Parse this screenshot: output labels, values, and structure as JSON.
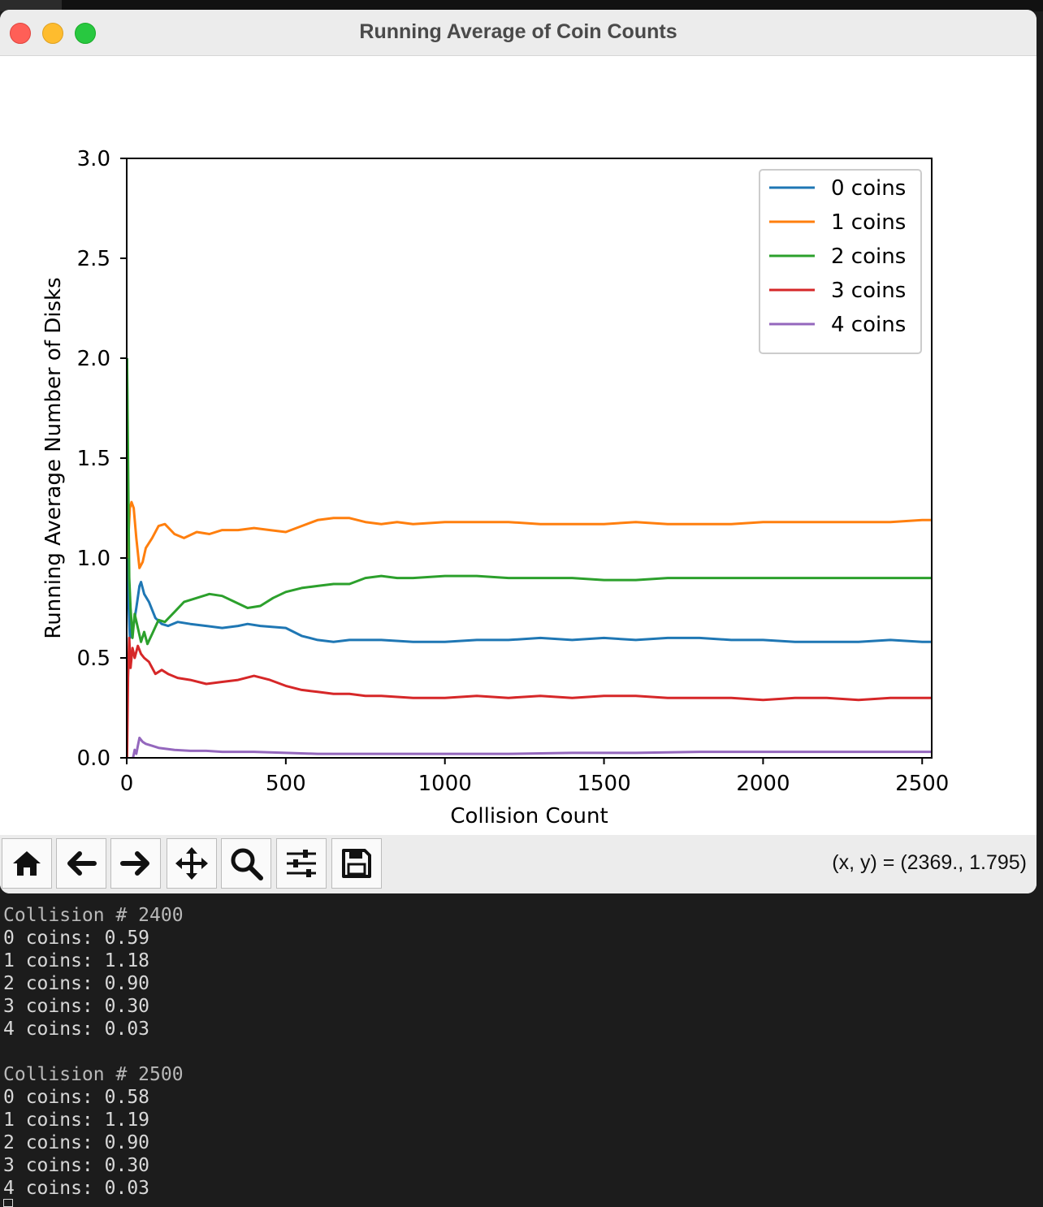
{
  "window": {
    "title": "Running Average of Coin Counts"
  },
  "toolbar": {
    "buttons": [
      {
        "name": "home-button",
        "icon": "home-icon"
      },
      {
        "name": "back-button",
        "icon": "arrow-left-icon"
      },
      {
        "name": "forward-button",
        "icon": "arrow-right-icon"
      },
      {
        "name": "pan-button",
        "icon": "move-icon"
      },
      {
        "name": "zoom-button",
        "icon": "magnifier-icon"
      },
      {
        "name": "configure-subplots-button",
        "icon": "sliders-icon"
      },
      {
        "name": "save-button",
        "icon": "floppy-disk-icon"
      }
    ],
    "coords": "(x, y) = (2369., 1.795)"
  },
  "chart_data": {
    "type": "line",
    "title": "",
    "xlabel": "Collision Count",
    "ylabel": "Running Average Number of Disks",
    "xlim": [
      0,
      2530
    ],
    "ylim": [
      0,
      3.0
    ],
    "xticks": [
      "0",
      "500",
      "1000",
      "1500",
      "2000",
      "2500"
    ],
    "yticks": [
      "0.0",
      "0.5",
      "1.0",
      "1.5",
      "2.0",
      "2.5",
      "3.0"
    ],
    "legend_position": "top-right",
    "grid": false,
    "series": [
      {
        "name": "0 coins",
        "color": "#1f77b4",
        "points": [
          [
            1,
            2.0
          ],
          [
            5,
            0.8
          ],
          [
            10,
            0.6
          ],
          [
            20,
            0.65
          ],
          [
            30,
            0.75
          ],
          [
            40,
            0.86
          ],
          [
            45,
            0.88
          ],
          [
            55,
            0.82
          ],
          [
            70,
            0.78
          ],
          [
            90,
            0.7
          ],
          [
            110,
            0.67
          ],
          [
            130,
            0.66
          ],
          [
            160,
            0.68
          ],
          [
            200,
            0.67
          ],
          [
            250,
            0.66
          ],
          [
            300,
            0.65
          ],
          [
            350,
            0.66
          ],
          [
            380,
            0.67
          ],
          [
            420,
            0.66
          ],
          [
            500,
            0.65
          ],
          [
            550,
            0.61
          ],
          [
            600,
            0.59
          ],
          [
            650,
            0.58
          ],
          [
            700,
            0.59
          ],
          [
            800,
            0.59
          ],
          [
            900,
            0.58
          ],
          [
            1000,
            0.58
          ],
          [
            1100,
            0.59
          ],
          [
            1200,
            0.59
          ],
          [
            1300,
            0.6
          ],
          [
            1400,
            0.59
          ],
          [
            1500,
            0.6
          ],
          [
            1600,
            0.59
          ],
          [
            1700,
            0.6
          ],
          [
            1800,
            0.6
          ],
          [
            1900,
            0.59
          ],
          [
            2000,
            0.59
          ],
          [
            2100,
            0.58
          ],
          [
            2200,
            0.58
          ],
          [
            2300,
            0.58
          ],
          [
            2400,
            0.59
          ],
          [
            2500,
            0.58
          ],
          [
            2530,
            0.58
          ]
        ]
      },
      {
        "name": "1 coins",
        "color": "#ff7f0e",
        "points": [
          [
            1,
            1.0
          ],
          [
            5,
            1.1
          ],
          [
            10,
            1.25
          ],
          [
            15,
            1.28
          ],
          [
            22,
            1.25
          ],
          [
            30,
            1.1
          ],
          [
            40,
            0.95
          ],
          [
            50,
            0.98
          ],
          [
            60,
            1.05
          ],
          [
            80,
            1.1
          ],
          [
            100,
            1.16
          ],
          [
            120,
            1.17
          ],
          [
            150,
            1.12
          ],
          [
            180,
            1.1
          ],
          [
            220,
            1.13
          ],
          [
            260,
            1.12
          ],
          [
            300,
            1.14
          ],
          [
            350,
            1.14
          ],
          [
            400,
            1.15
          ],
          [
            450,
            1.14
          ],
          [
            500,
            1.13
          ],
          [
            550,
            1.16
          ],
          [
            600,
            1.19
          ],
          [
            650,
            1.2
          ],
          [
            700,
            1.2
          ],
          [
            750,
            1.18
          ],
          [
            800,
            1.17
          ],
          [
            850,
            1.18
          ],
          [
            900,
            1.17
          ],
          [
            1000,
            1.18
          ],
          [
            1100,
            1.18
          ],
          [
            1200,
            1.18
          ],
          [
            1300,
            1.17
          ],
          [
            1400,
            1.17
          ],
          [
            1500,
            1.17
          ],
          [
            1600,
            1.18
          ],
          [
            1700,
            1.17
          ],
          [
            1800,
            1.17
          ],
          [
            1900,
            1.17
          ],
          [
            2000,
            1.18
          ],
          [
            2100,
            1.18
          ],
          [
            2200,
            1.18
          ],
          [
            2300,
            1.18
          ],
          [
            2400,
            1.18
          ],
          [
            2500,
            1.19
          ],
          [
            2530,
            1.19
          ]
        ]
      },
      {
        "name": "2 coins",
        "color": "#2ca02c",
        "points": [
          [
            1,
            2.0
          ],
          [
            4,
            1.5
          ],
          [
            8,
            0.9
          ],
          [
            12,
            0.75
          ],
          [
            18,
            0.6
          ],
          [
            25,
            0.72
          ],
          [
            35,
            0.65
          ],
          [
            45,
            0.58
          ],
          [
            55,
            0.63
          ],
          [
            65,
            0.57
          ],
          [
            80,
            0.62
          ],
          [
            100,
            0.69
          ],
          [
            120,
            0.68
          ],
          [
            150,
            0.73
          ],
          [
            180,
            0.78
          ],
          [
            220,
            0.8
          ],
          [
            260,
            0.82
          ],
          [
            300,
            0.81
          ],
          [
            340,
            0.78
          ],
          [
            380,
            0.75
          ],
          [
            420,
            0.76
          ],
          [
            460,
            0.8
          ],
          [
            500,
            0.83
          ],
          [
            550,
            0.85
          ],
          [
            600,
            0.86
          ],
          [
            650,
            0.87
          ],
          [
            700,
            0.87
          ],
          [
            750,
            0.9
          ],
          [
            800,
            0.91
          ],
          [
            850,
            0.9
          ],
          [
            900,
            0.9
          ],
          [
            1000,
            0.91
          ],
          [
            1100,
            0.91
          ],
          [
            1200,
            0.9
          ],
          [
            1300,
            0.9
          ],
          [
            1400,
            0.9
          ],
          [
            1500,
            0.89
          ],
          [
            1600,
            0.89
          ],
          [
            1700,
            0.9
          ],
          [
            1800,
            0.9
          ],
          [
            1900,
            0.9
          ],
          [
            2000,
            0.9
          ],
          [
            2100,
            0.9
          ],
          [
            2200,
            0.9
          ],
          [
            2300,
            0.9
          ],
          [
            2400,
            0.9
          ],
          [
            2500,
            0.9
          ],
          [
            2530,
            0.9
          ]
        ]
      },
      {
        "name": "3 coins",
        "color": "#d62728",
        "points": [
          [
            1,
            0.0
          ],
          [
            4,
            0.4
          ],
          [
            8,
            0.6
          ],
          [
            12,
            0.45
          ],
          [
            18,
            0.55
          ],
          [
            25,
            0.5
          ],
          [
            35,
            0.56
          ],
          [
            45,
            0.52
          ],
          [
            55,
            0.5
          ],
          [
            70,
            0.48
          ],
          [
            90,
            0.42
          ],
          [
            110,
            0.44
          ],
          [
            130,
            0.42
          ],
          [
            160,
            0.4
          ],
          [
            200,
            0.39
          ],
          [
            250,
            0.37
          ],
          [
            300,
            0.38
          ],
          [
            350,
            0.39
          ],
          [
            400,
            0.41
          ],
          [
            450,
            0.39
          ],
          [
            500,
            0.36
          ],
          [
            550,
            0.34
          ],
          [
            600,
            0.33
          ],
          [
            650,
            0.32
          ],
          [
            700,
            0.32
          ],
          [
            750,
            0.31
          ],
          [
            800,
            0.31
          ],
          [
            900,
            0.3
          ],
          [
            1000,
            0.3
          ],
          [
            1100,
            0.31
          ],
          [
            1200,
            0.3
          ],
          [
            1300,
            0.31
          ],
          [
            1400,
            0.3
          ],
          [
            1500,
            0.31
          ],
          [
            1600,
            0.31
          ],
          [
            1700,
            0.3
          ],
          [
            1800,
            0.3
          ],
          [
            1900,
            0.3
          ],
          [
            2000,
            0.29
          ],
          [
            2100,
            0.3
          ],
          [
            2200,
            0.3
          ],
          [
            2300,
            0.29
          ],
          [
            2400,
            0.3
          ],
          [
            2500,
            0.3
          ],
          [
            2530,
            0.3
          ]
        ]
      },
      {
        "name": "4 coins",
        "color": "#9467bd",
        "points": [
          [
            20,
            0.0
          ],
          [
            25,
            0.04
          ],
          [
            30,
            0.02
          ],
          [
            35,
            0.06
          ],
          [
            40,
            0.1
          ],
          [
            50,
            0.08
          ],
          [
            60,
            0.07
          ],
          [
            80,
            0.06
          ],
          [
            100,
            0.05
          ],
          [
            150,
            0.04
          ],
          [
            200,
            0.035
          ],
          [
            250,
            0.035
          ],
          [
            300,
            0.03
          ],
          [
            400,
            0.03
          ],
          [
            500,
            0.025
          ],
          [
            600,
            0.02
          ],
          [
            700,
            0.02
          ],
          [
            800,
            0.02
          ],
          [
            900,
            0.02
          ],
          [
            1000,
            0.02
          ],
          [
            1200,
            0.02
          ],
          [
            1400,
            0.025
          ],
          [
            1600,
            0.025
          ],
          [
            1800,
            0.03
          ],
          [
            2000,
            0.03
          ],
          [
            2200,
            0.03
          ],
          [
            2400,
            0.03
          ],
          [
            2530,
            0.03
          ]
        ]
      }
    ]
  },
  "console": {
    "lines": [
      "Collision # 2400",
      "0 coins: 0.59",
      "1 coins: 1.18",
      "2 coins: 0.90",
      "3 coins: 0.30",
      "4 coins: 0.03",
      "",
      "Collision # 2500",
      "0 coins: 0.58",
      "1 coins: 1.19",
      "2 coins: 0.90",
      "3 coins: 0.30",
      "4 coins: 0.03"
    ]
  }
}
